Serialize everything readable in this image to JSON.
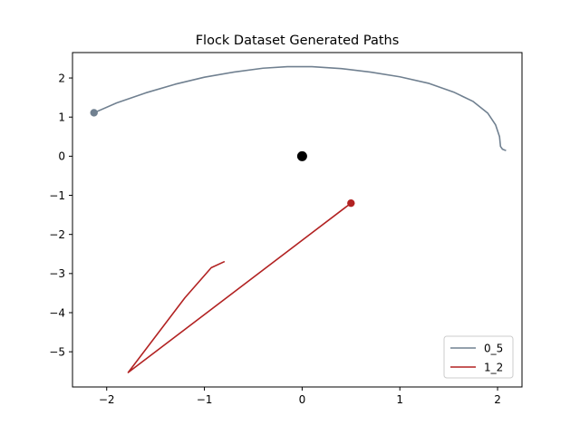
{
  "chart_data": {
    "type": "line",
    "title": "Flock Dataset Generated Paths",
    "xlabel": "",
    "ylabel": "",
    "xlim": [
      -2.35,
      2.25
    ],
    "ylim": [
      -5.9,
      2.65
    ],
    "xticks": [
      -2,
      -1,
      0,
      1,
      2
    ],
    "yticks": [
      2,
      1,
      0,
      -1,
      -2,
      -3,
      -4,
      -5
    ],
    "xtick_labels": [
      "−2",
      "−1",
      "0",
      "1",
      "2"
    ],
    "ytick_labels": [
      "2",
      "1",
      "0",
      "−1",
      "−2",
      "−3",
      "−4",
      "−5"
    ],
    "grid": false,
    "legend_position": "lower-right",
    "center_point": {
      "x": 0,
      "y": 0,
      "color": "#000000"
    },
    "series": [
      {
        "name": "0_5",
        "color": "#708090",
        "start": {
          "x": -2.13,
          "y": 1.11
        },
        "points": [
          [
            -2.13,
            1.11
          ],
          [
            -1.9,
            1.36
          ],
          [
            -1.6,
            1.62
          ],
          [
            -1.3,
            1.84
          ],
          [
            -1.0,
            2.02
          ],
          [
            -0.7,
            2.15
          ],
          [
            -0.4,
            2.25
          ],
          [
            -0.15,
            2.29
          ],
          [
            0.1,
            2.29
          ],
          [
            0.4,
            2.24
          ],
          [
            0.7,
            2.15
          ],
          [
            1.0,
            2.03
          ],
          [
            1.3,
            1.86
          ],
          [
            1.55,
            1.64
          ],
          [
            1.75,
            1.4
          ],
          [
            1.9,
            1.1
          ],
          [
            1.98,
            0.8
          ],
          [
            2.02,
            0.5
          ],
          [
            2.03,
            0.25
          ],
          [
            2.05,
            0.18
          ],
          [
            2.08,
            0.15
          ]
        ]
      },
      {
        "name": "1_2",
        "color": "#b22222",
        "start": {
          "x": 0.5,
          "y": -1.2
        },
        "points": [
          [
            0.5,
            -1.2
          ],
          [
            -1.78,
            -5.53
          ],
          [
            -1.2,
            -3.62
          ],
          [
            -0.93,
            -2.85
          ],
          [
            -0.8,
            -2.7
          ]
        ]
      }
    ]
  }
}
